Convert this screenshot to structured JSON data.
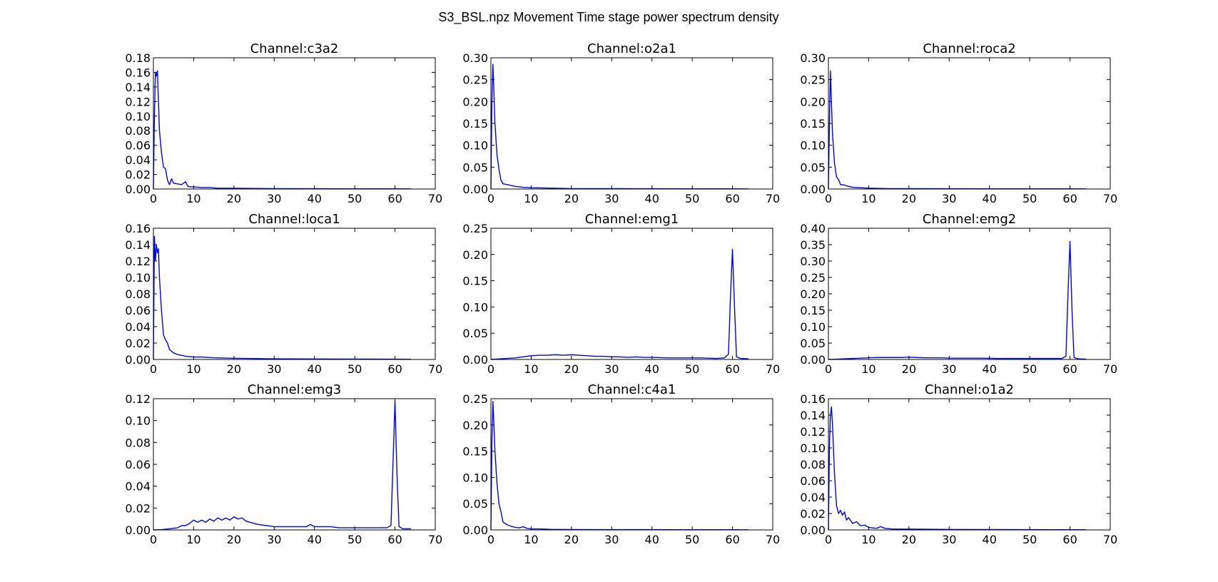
{
  "figure": {
    "title": "S3_BSL.npz Movement Time stage power spectrum density",
    "line_color": "#0000ff"
  },
  "chart_data": [
    {
      "type": "line",
      "title": "Channel:c3a2",
      "xlim": [
        0,
        70
      ],
      "ylim": [
        0,
        0.18
      ],
      "xticks": [
        0,
        10,
        20,
        30,
        40,
        50,
        60,
        70
      ],
      "xtick_labels": [
        "0",
        "10",
        "20",
        "30",
        "40",
        "50",
        "60",
        "70"
      ],
      "yticks": [
        0,
        0.02,
        0.04,
        0.06,
        0.08,
        0.1,
        0.12,
        0.14,
        0.16,
        0.18
      ],
      "ytick_labels": [
        "0.00",
        "0.02",
        "0.04",
        "0.06",
        "0.08",
        "0.10",
        "0.12",
        "0.14",
        "0.16",
        "0.18"
      ],
      "x": [
        0,
        0.25,
        0.5,
        0.75,
        1.0,
        1.25,
        1.5,
        2,
        2.5,
        3,
        3.5,
        4,
        4.5,
        5,
        6,
        7,
        8,
        8.5,
        9,
        10,
        12,
        14,
        16,
        20,
        30,
        40,
        50,
        60,
        64
      ],
      "y": [
        0.0,
        0.1,
        0.16,
        0.155,
        0.162,
        0.12,
        0.08,
        0.05,
        0.03,
        0.028,
        0.012,
        0.006,
        0.014,
        0.008,
        0.007,
        0.006,
        0.01,
        0.004,
        0.003,
        0.003,
        0.002,
        0.002,
        0.001,
        0.001,
        0.0005,
        0.0004,
        0.0003,
        0.0003,
        0.0002
      ]
    },
    {
      "type": "line",
      "title": "Channel:o2a1",
      "xlim": [
        0,
        70
      ],
      "ylim": [
        0,
        0.3
      ],
      "xticks": [
        0,
        10,
        20,
        30,
        40,
        50,
        60,
        70
      ],
      "xtick_labels": [
        "0",
        "10",
        "20",
        "30",
        "40",
        "50",
        "60",
        "70"
      ],
      "yticks": [
        0,
        0.05,
        0.1,
        0.15,
        0.2,
        0.25,
        0.3
      ],
      "ytick_labels": [
        "0.00",
        "0.05",
        "0.10",
        "0.15",
        "0.20",
        "0.25",
        "0.30"
      ],
      "x": [
        0,
        0.25,
        0.5,
        0.75,
        1.0,
        1.5,
        2,
        2.5,
        3,
        4,
        5,
        6,
        8,
        10,
        15,
        20,
        30,
        40,
        50,
        60,
        64
      ],
      "y": [
        0.0,
        0.2,
        0.285,
        0.22,
        0.15,
        0.08,
        0.045,
        0.02,
        0.012,
        0.01,
        0.008,
        0.006,
        0.004,
        0.003,
        0.002,
        0.001,
        0.0008,
        0.0006,
        0.0005,
        0.0005,
        0.0003
      ]
    },
    {
      "type": "line",
      "title": "Channel:roca2",
      "xlim": [
        0,
        70
      ],
      "ylim": [
        0,
        0.3
      ],
      "xticks": [
        0,
        10,
        20,
        30,
        40,
        50,
        60,
        70
      ],
      "xtick_labels": [
        "0",
        "10",
        "20",
        "30",
        "40",
        "50",
        "60",
        "70"
      ],
      "yticks": [
        0,
        0.05,
        0.1,
        0.15,
        0.2,
        0.25,
        0.3
      ],
      "ytick_labels": [
        "0.00",
        "0.05",
        "0.10",
        "0.15",
        "0.20",
        "0.25",
        "0.30"
      ],
      "x": [
        0,
        0.25,
        0.5,
        0.75,
        1.0,
        1.5,
        2,
        2.5,
        3,
        4,
        5,
        6,
        8,
        10,
        15,
        20,
        30,
        40,
        50,
        60,
        64
      ],
      "y": [
        0.0,
        0.15,
        0.27,
        0.2,
        0.13,
        0.06,
        0.028,
        0.022,
        0.01,
        0.009,
        0.006,
        0.004,
        0.003,
        0.002,
        0.001,
        0.0008,
        0.0006,
        0.0005,
        0.0004,
        0.0004,
        0.0003
      ]
    },
    {
      "type": "line",
      "title": "Channel:loca1",
      "xlim": [
        0,
        70
      ],
      "ylim": [
        0,
        0.16
      ],
      "xticks": [
        0,
        10,
        20,
        30,
        40,
        50,
        60,
        70
      ],
      "xtick_labels": [
        "0",
        "10",
        "20",
        "30",
        "40",
        "50",
        "60",
        "70"
      ],
      "yticks": [
        0,
        0.02,
        0.04,
        0.06,
        0.08,
        0.1,
        0.12,
        0.14,
        0.16
      ],
      "ytick_labels": [
        "0.00",
        "0.02",
        "0.04",
        "0.06",
        "0.08",
        "0.10",
        "0.12",
        "0.14",
        "0.16"
      ],
      "x": [
        0,
        0.25,
        0.5,
        0.75,
        1.0,
        1.25,
        1.5,
        2,
        2.5,
        3,
        3.5,
        4,
        5,
        6,
        7,
        8,
        10,
        12,
        15,
        20,
        30,
        40,
        50,
        60,
        64
      ],
      "y": [
        0.0,
        0.15,
        0.12,
        0.14,
        0.13,
        0.135,
        0.1,
        0.06,
        0.03,
        0.024,
        0.02,
        0.012,
        0.008,
        0.006,
        0.005,
        0.004,
        0.003,
        0.003,
        0.002,
        0.0015,
        0.0008,
        0.0006,
        0.0005,
        0.0004,
        0.0003
      ]
    },
    {
      "type": "line",
      "title": "Channel:emg1",
      "xlim": [
        0,
        70
      ],
      "ylim": [
        0,
        0.25
      ],
      "xticks": [
        0,
        10,
        20,
        30,
        40,
        50,
        60,
        70
      ],
      "xtick_labels": [
        "0",
        "10",
        "20",
        "30",
        "40",
        "50",
        "60",
        "70"
      ],
      "yticks": [
        0,
        0.05,
        0.1,
        0.15,
        0.2,
        0.25
      ],
      "ytick_labels": [
        "0.00",
        "0.05",
        "0.10",
        "0.15",
        "0.20",
        "0.25"
      ],
      "x": [
        0,
        2,
        4,
        6,
        8,
        10,
        12,
        14,
        16,
        18,
        20,
        22,
        24,
        26,
        28,
        30,
        32,
        34,
        36,
        38,
        40,
        44,
        48,
        52,
        56,
        58,
        59,
        59.5,
        60,
        60.5,
        61,
        62,
        64
      ],
      "y": [
        0.0,
        0.001,
        0.002,
        0.003,
        0.005,
        0.007,
        0.008,
        0.008,
        0.009,
        0.008,
        0.009,
        0.008,
        0.007,
        0.006,
        0.006,
        0.005,
        0.005,
        0.004,
        0.005,
        0.004,
        0.004,
        0.003,
        0.003,
        0.003,
        0.002,
        0.003,
        0.01,
        0.12,
        0.21,
        0.1,
        0.005,
        0.002,
        0.001
      ]
    },
    {
      "type": "line",
      "title": "Channel:emg2",
      "xlim": [
        0,
        70
      ],
      "ylim": [
        0,
        0.4
      ],
      "xticks": [
        0,
        10,
        20,
        30,
        40,
        50,
        60,
        70
      ],
      "xtick_labels": [
        "0",
        "10",
        "20",
        "30",
        "40",
        "50",
        "60",
        "70"
      ],
      "yticks": [
        0,
        0.05,
        0.1,
        0.15,
        0.2,
        0.25,
        0.3,
        0.35,
        0.4
      ],
      "ytick_labels": [
        "0.00",
        "0.05",
        "0.10",
        "0.15",
        "0.20",
        "0.25",
        "0.30",
        "0.35",
        "0.40"
      ],
      "x": [
        0,
        2,
        4,
        6,
        8,
        10,
        12,
        14,
        16,
        18,
        20,
        22,
        24,
        26,
        28,
        30,
        34,
        38,
        42,
        46,
        50,
        54,
        58,
        59,
        59.5,
        60,
        60.5,
        61,
        62,
        64
      ],
      "y": [
        0.0,
        0.001,
        0.002,
        0.003,
        0.004,
        0.005,
        0.006,
        0.006,
        0.006,
        0.006,
        0.007,
        0.006,
        0.005,
        0.005,
        0.005,
        0.004,
        0.004,
        0.004,
        0.003,
        0.003,
        0.003,
        0.003,
        0.003,
        0.01,
        0.2,
        0.36,
        0.15,
        0.006,
        0.002,
        0.001
      ]
    },
    {
      "type": "line",
      "title": "Channel:emg3",
      "xlim": [
        0,
        70
      ],
      "ylim": [
        0,
        0.12
      ],
      "xticks": [
        0,
        10,
        20,
        30,
        40,
        50,
        60,
        70
      ],
      "xtick_labels": [
        "0",
        "10",
        "20",
        "30",
        "40",
        "50",
        "60",
        "70"
      ],
      "yticks": [
        0,
        0.02,
        0.04,
        0.06,
        0.08,
        0.1,
        0.12
      ],
      "ytick_labels": [
        "0.00",
        "0.02",
        "0.04",
        "0.06",
        "0.08",
        "0.10",
        "0.12"
      ],
      "x": [
        0,
        2,
        4,
        6,
        7,
        8,
        9,
        10,
        11,
        12,
        13,
        14,
        15,
        16,
        17,
        18,
        19,
        20,
        21,
        22,
        23,
        24,
        25,
        26,
        28,
        30,
        32,
        34,
        36,
        38,
        39,
        40,
        42,
        44,
        46,
        48,
        50,
        52,
        54,
        56,
        58,
        59,
        59.5,
        60,
        60.5,
        61,
        62,
        64
      ],
      "y": [
        0.0,
        0.0003,
        0.001,
        0.002,
        0.004,
        0.004,
        0.006,
        0.009,
        0.007,
        0.009,
        0.007,
        0.01,
        0.008,
        0.011,
        0.009,
        0.011,
        0.009,
        0.012,
        0.01,
        0.011,
        0.008,
        0.007,
        0.006,
        0.005,
        0.004,
        0.003,
        0.003,
        0.003,
        0.003,
        0.003,
        0.005,
        0.003,
        0.003,
        0.003,
        0.002,
        0.002,
        0.002,
        0.002,
        0.002,
        0.002,
        0.002,
        0.004,
        0.06,
        0.118,
        0.05,
        0.003,
        0.001,
        0.001
      ]
    },
    {
      "type": "line",
      "title": "Channel:c4a1",
      "xlim": [
        0,
        70
      ],
      "ylim": [
        0,
        0.25
      ],
      "xticks": [
        0,
        10,
        20,
        30,
        40,
        50,
        60,
        70
      ],
      "xtick_labels": [
        "0",
        "10",
        "20",
        "30",
        "40",
        "50",
        "60",
        "70"
      ],
      "yticks": [
        0,
        0.05,
        0.1,
        0.15,
        0.2,
        0.25
      ],
      "ytick_labels": [
        "0.00",
        "0.05",
        "0.10",
        "0.15",
        "0.20",
        "0.25"
      ],
      "x": [
        0,
        0.25,
        0.5,
        0.75,
        1.0,
        1.5,
        2,
        2.5,
        3,
        4,
        5,
        6,
        7,
        8,
        9,
        10,
        12,
        15,
        20,
        30,
        40,
        50,
        60,
        64
      ],
      "y": [
        0.0,
        0.17,
        0.245,
        0.2,
        0.15,
        0.09,
        0.05,
        0.035,
        0.015,
        0.01,
        0.007,
        0.005,
        0.004,
        0.006,
        0.003,
        0.002,
        0.002,
        0.001,
        0.0008,
        0.0006,
        0.0005,
        0.0004,
        0.0004,
        0.0003
      ]
    },
    {
      "type": "line",
      "title": "Channel:o1a2",
      "xlim": [
        0,
        70
      ],
      "ylim": [
        0,
        0.16
      ],
      "xticks": [
        0,
        10,
        20,
        30,
        40,
        50,
        60,
        70
      ],
      "xtick_labels": [
        "0",
        "10",
        "20",
        "30",
        "40",
        "50",
        "60",
        "70"
      ],
      "yticks": [
        0,
        0.02,
        0.04,
        0.06,
        0.08,
        0.1,
        0.12,
        0.14,
        0.16
      ],
      "ytick_labels": [
        "0.00",
        "0.02",
        "0.04",
        "0.06",
        "0.08",
        "0.10",
        "0.12",
        "0.14",
        "0.16"
      ],
      "x": [
        0,
        0.25,
        0.5,
        0.75,
        1.0,
        1.25,
        1.5,
        2,
        2.5,
        3,
        3.5,
        4,
        4.5,
        5,
        6,
        7,
        8,
        9,
        10,
        12,
        13,
        14,
        16,
        20,
        30,
        40,
        50,
        60,
        64
      ],
      "y": [
        0.0,
        0.1,
        0.14,
        0.15,
        0.13,
        0.1,
        0.07,
        0.03,
        0.02,
        0.024,
        0.018,
        0.022,
        0.012,
        0.015,
        0.008,
        0.01,
        0.005,
        0.006,
        0.003,
        0.002,
        0.004,
        0.002,
        0.001,
        0.001,
        0.0006,
        0.0005,
        0.0004,
        0.0003,
        0.0003
      ]
    }
  ]
}
